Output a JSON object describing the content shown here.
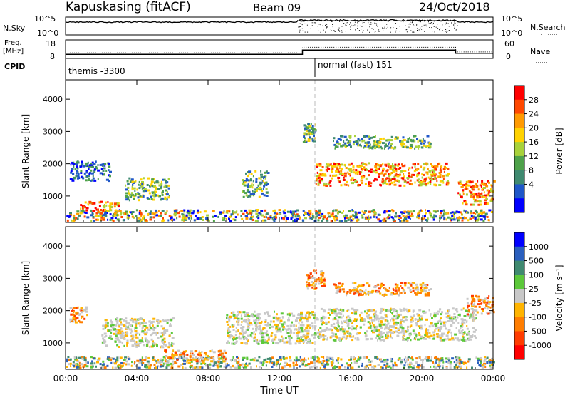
{
  "header": {
    "station": "Kapuskasing (fitACF)",
    "beam": "Beam 09",
    "date": "24/Oct/2018"
  },
  "top_panels": {
    "nsky_label": "N.Sky",
    "nsky_ticks": [
      "10^5",
      "10^0"
    ],
    "nsearch_label": "N.Search",
    "nsearch_ticks": [
      "10^5",
      "10^0"
    ],
    "freq_label_1": "Freq.",
    "freq_label_2": "[MHz]",
    "freq_ticks": [
      "18",
      "8"
    ],
    "nave_label": "Nave",
    "nave_ticks": [
      "60",
      "0"
    ],
    "cpid_label": "CPID",
    "cpid_modes": [
      "themis -3300",
      "normal (fast) 151"
    ]
  },
  "chart_data": [
    {
      "type": "heatmap",
      "name": "power",
      "xlabel": "",
      "ylabel": "Slant Range [km]",
      "x_ticks": [
        "00:00",
        "04:00",
        "08:00",
        "12:00",
        "16:00",
        "20:00",
        "00:00"
      ],
      "xlim_hours": [
        0,
        24
      ],
      "ylim_km": [
        180,
        4600
      ],
      "y_ticks": [
        1000,
        2000,
        3000,
        4000
      ],
      "colorbar_label": "Power [dB]",
      "colorbar_ticks": [
        "28",
        "24",
        "20",
        "16",
        "12",
        "8",
        "4"
      ],
      "colorbar_colors": [
        "#ff0000",
        "#ff4800",
        "#ff9a00",
        "#ffd200",
        "#a8d23a",
        "#4ea24a",
        "#3f8a70",
        "#1f57c8",
        "#0000ff"
      ],
      "echo_regions": [
        {
          "t0": 0.0,
          "t1": 24.0,
          "r0": 250,
          "r1": 600,
          "level": "mixed"
        },
        {
          "t0": 0.2,
          "t1": 2.5,
          "r0": 1500,
          "r1": 2100,
          "level": "low"
        },
        {
          "t0": 0.8,
          "t1": 3.0,
          "r0": 550,
          "r1": 850,
          "level": "high"
        },
        {
          "t0": 3.3,
          "t1": 5.8,
          "r0": 900,
          "r1": 1600,
          "level": "mid"
        },
        {
          "t0": 9.9,
          "t1": 11.3,
          "r0": 1000,
          "r1": 1800,
          "level": "mid"
        },
        {
          "t0": 13.3,
          "t1": 14.0,
          "r0": 2700,
          "r1": 3300,
          "level": "mid"
        },
        {
          "t0": 14.0,
          "t1": 21.5,
          "r0": 1350,
          "r1": 2050,
          "level": "high"
        },
        {
          "t0": 15.0,
          "t1": 20.5,
          "r0": 2500,
          "r1": 2900,
          "level": "mid"
        },
        {
          "t0": 22.0,
          "t1": 24.0,
          "r0": 750,
          "r1": 1500,
          "level": "high"
        }
      ]
    },
    {
      "type": "heatmap",
      "name": "velocity",
      "xlabel": "Time UT",
      "ylabel": "Slant Range [km]",
      "x_ticks": [
        "00:00",
        "04:00",
        "08:00",
        "12:00",
        "16:00",
        "20:00",
        "00:00"
      ],
      "xlim_hours": [
        0,
        24
      ],
      "ylim_km": [
        180,
        4600
      ],
      "y_ticks": [
        1000,
        2000,
        3000,
        4000
      ],
      "colorbar_label": "Velocity [m s⁻¹]",
      "colorbar_ticks": [
        "1000",
        "500",
        "100",
        "25",
        "-25",
        "-100",
        "-500",
        "-1000"
      ],
      "colorbar_colors": [
        "#0000ff",
        "#2a5fbe",
        "#3f8a70",
        "#5cc83a",
        "#c8c8c8",
        "#ffb400",
        "#ff7d00",
        "#ff3c00",
        "#ff0000"
      ],
      "echo_regions": [
        {
          "t0": 0.0,
          "t1": 24.0,
          "r0": 250,
          "r1": 600,
          "level": "mixed"
        },
        {
          "t0": 0.2,
          "t1": 1.2,
          "r0": 1650,
          "r1": 2150,
          "level": "neg"
        },
        {
          "t0": 2.0,
          "t1": 6.0,
          "r0": 900,
          "r1": 1800,
          "level": "zero"
        },
        {
          "t0": 5.5,
          "t1": 9.0,
          "r0": 450,
          "r1": 800,
          "level": "neg"
        },
        {
          "t0": 9.0,
          "t1": 14.0,
          "r0": 1000,
          "r1": 2000,
          "level": "zero"
        },
        {
          "t0": 13.5,
          "t1": 14.5,
          "r0": 2700,
          "r1": 3300,
          "level": "neg"
        },
        {
          "t0": 14.0,
          "t1": 23.0,
          "r0": 1100,
          "r1": 2100,
          "level": "zero"
        },
        {
          "t0": 15.0,
          "t1": 20.5,
          "r0": 2500,
          "r1": 2900,
          "level": "neg"
        },
        {
          "t0": 22.5,
          "t1": 24.0,
          "r0": 1900,
          "r1": 2500,
          "level": "neg"
        }
      ]
    }
  ],
  "line_series": {
    "freq_mhz": [
      {
        "t0": 0.0,
        "t1": 13.3,
        "value": 10.2
      },
      {
        "t0": 13.3,
        "t1": 21.9,
        "value": 12.5
      },
      {
        "t0": 21.9,
        "t1": 24.0,
        "value": 10.8
      }
    ],
    "nave": [
      {
        "t0": 0.0,
        "t1": 13.3,
        "value": 18
      },
      {
        "t0": 13.3,
        "t1": 21.9,
        "value": 36
      },
      {
        "t0": 21.9,
        "t1": 24.0,
        "value": 21
      }
    ],
    "cpid_change_hour": 14.0
  }
}
